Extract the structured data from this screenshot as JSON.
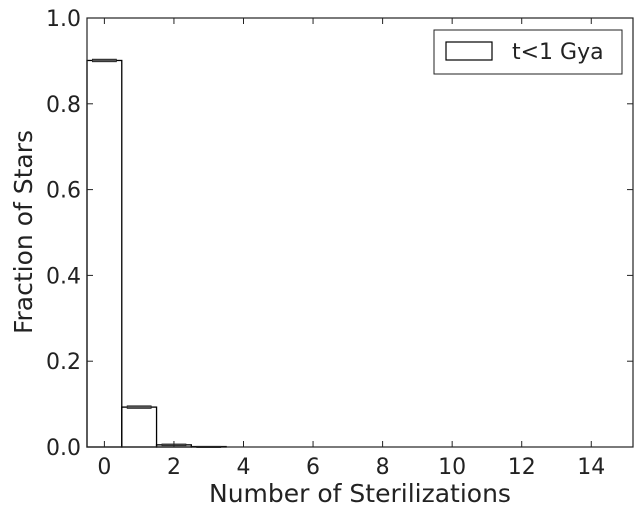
{
  "chart_data": {
    "type": "bar",
    "style": "step histogram, unfilled, with small error bars",
    "categories": [
      "0",
      "1",
      "2",
      "3",
      "4",
      "5",
      "6",
      "7",
      "8",
      "9",
      "10",
      "11",
      "12",
      "13",
      "14",
      "15"
    ],
    "series": [
      {
        "name": "t<1 Gya",
        "values": [
          0.901,
          0.093,
          0.005,
          0.001,
          0.0,
          0.0,
          0.0,
          0.0,
          0.0,
          0.0,
          0.0,
          0.0,
          0.0,
          0.0,
          0.0,
          0.0
        ],
        "errors": [
          0.003,
          0.003,
          0.002,
          0.0005,
          0,
          0,
          0,
          0,
          0,
          0,
          0,
          0,
          0,
          0,
          0,
          0
        ]
      }
    ],
    "xlabel": "Number of Sterilizations",
    "ylabel": "Fraction of Stars",
    "xlim": [
      -0.5,
      15.2
    ],
    "ylim": [
      0,
      1.0
    ],
    "x_ticks": [
      0,
      2,
      4,
      6,
      8,
      10,
      12,
      14
    ],
    "x_tick_labels": [
      "0",
      "2",
      "4",
      "6",
      "8",
      "10",
      "12",
      "14"
    ],
    "y_ticks": [
      0.0,
      0.2,
      0.4,
      0.6,
      0.8,
      1.0
    ],
    "y_tick_labels": [
      "0.0",
      "0.2",
      "0.4",
      "0.6",
      "0.8",
      "1.0"
    ],
    "grid": false,
    "legend_position": "top-right",
    "colors": {
      "line": "#000000",
      "errorbar": "#555555",
      "axes": "#222222"
    }
  }
}
